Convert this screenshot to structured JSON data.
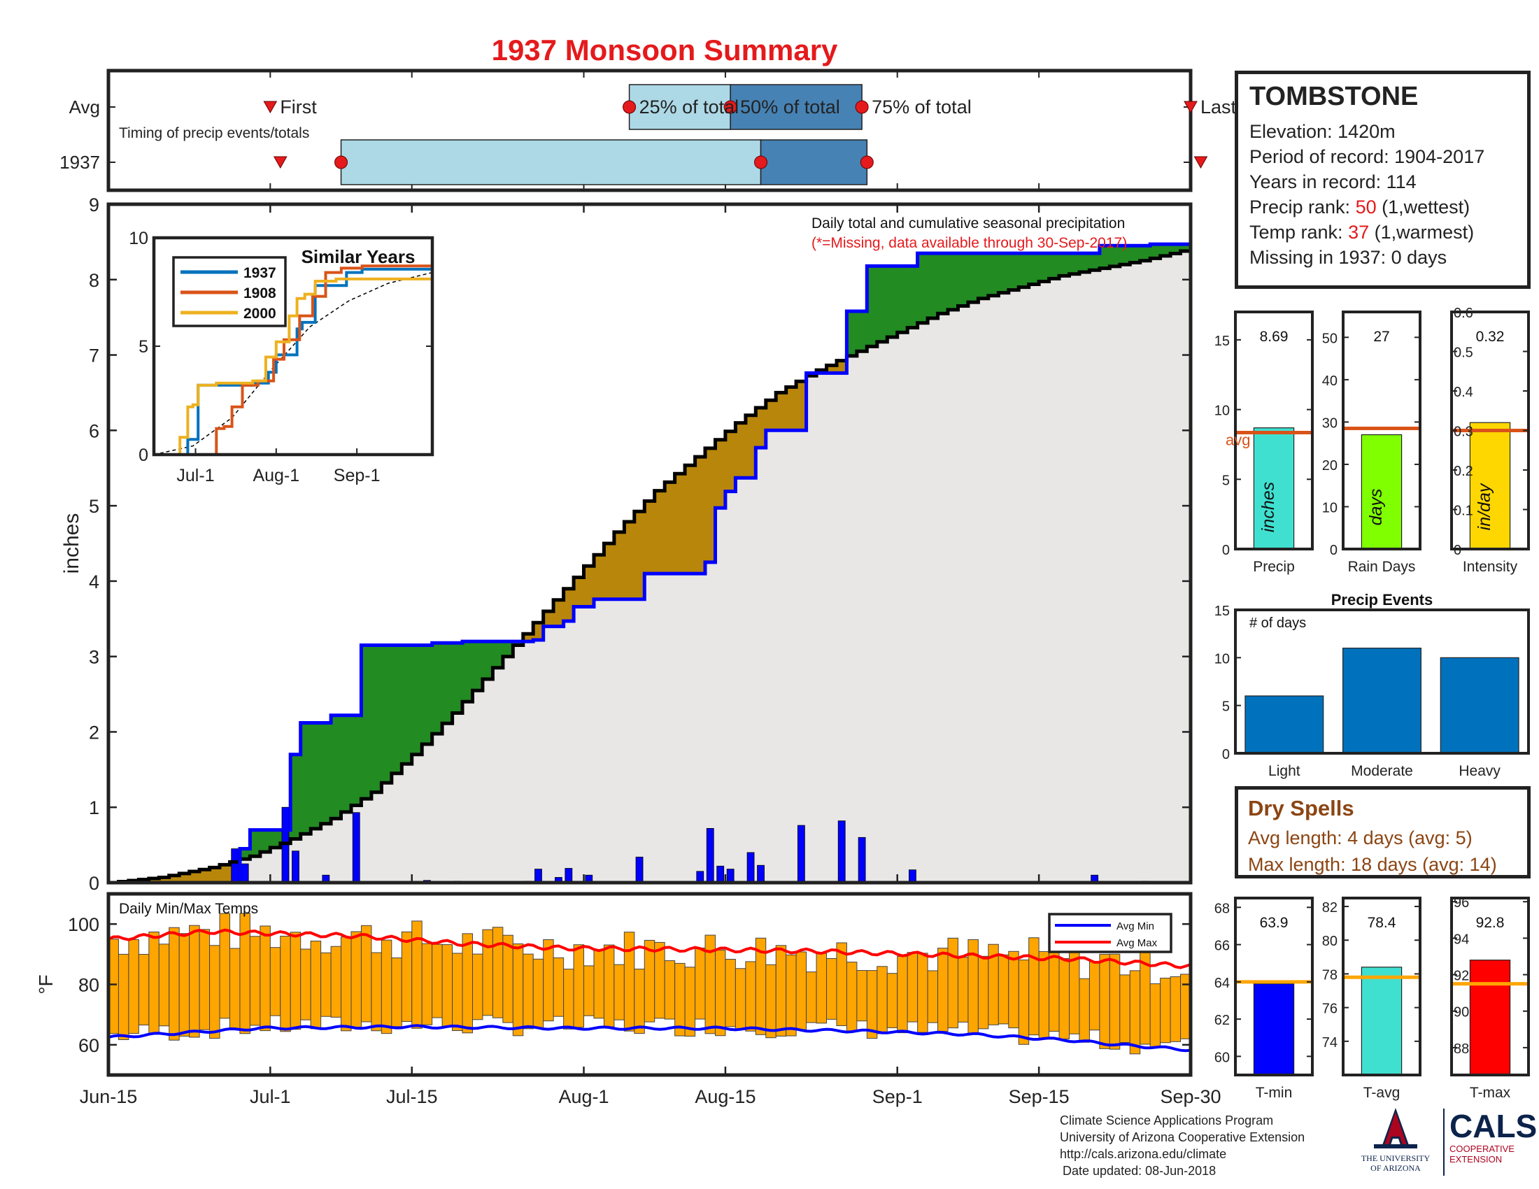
{
  "title": "1937 Monsoon Summary",
  "station": {
    "name": "TOMBSTONE",
    "elevation": "Elevation: 1420m",
    "period": "Period of record: 1904-2017",
    "years": "Years in record: 114",
    "precip_rank_prefix": "Precip rank: ",
    "precip_rank_value": "50",
    "precip_rank_suffix": " (1,wettest)",
    "temp_rank_prefix": "Temp rank: ",
    "temp_rank_value": "37",
    "temp_rank_suffix": " (1,warmest)",
    "missing": "Missing in 1937: 0 days"
  },
  "dry_spells": {
    "heading": "Dry Spells",
    "avg": "Avg length: 4 days (avg: 5)",
    "max": "Max length: 18 days (avg: 14)"
  },
  "credits": {
    "line1": "Climate Science Applications Program",
    "line2": "University of Arizona Cooperative Extension",
    "line3": "http://cals.arizona.edu/climate",
    "line4": "Date updated: 08-Jun-2018"
  },
  "logos": {
    "ua_text1": "THE UNIVERSITY",
    "ua_text2": "OF ARIZONA",
    "cals_text": "CALS",
    "cals_sub1": "COOPERATIVE",
    "cals_sub2": "EXTENSION"
  },
  "colors": {
    "red": "#e41a1c",
    "obs_line": "#0000ff",
    "avg_line": "#000000",
    "above_fill": "#228b22",
    "below_fill": "#b8860b",
    "area_fill": "#e8e7e6",
    "daily_bar": "#0000ff",
    "temp_bar": "#ffa500",
    "light_blue": "#add8e6",
    "steel_blue": "#4682b4",
    "event_bar": "#0072bd"
  },
  "chart_data": [
    {
      "id": "timing",
      "type": "timeline",
      "rows": [
        "Avg",
        "1937"
      ],
      "subtitle": "Timing of precip events/totals",
      "labels": {
        "first": "First",
        "p25": "25% of total",
        "p50": "50% of total",
        "p75": "75% of total",
        "last": "Last"
      },
      "avg": {
        "first": 16,
        "p25": 51.5,
        "p50": 61.5,
        "p75": 74.5,
        "last": 107
      },
      "y1937": {
        "first": 17,
        "p25": 23,
        "p50": 64.5,
        "p75": 75,
        "last": 108
      }
    },
    {
      "id": "cumulative",
      "type": "line",
      "title": "Daily total and cumulative seasonal precipitation",
      "note": "(*=Missing, data available through 30-Sep-2017)",
      "ylabel": "inches",
      "ylim": [
        0,
        9
      ],
      "yticks": [
        0,
        1,
        2,
        3,
        4,
        5,
        6,
        7,
        8,
        9
      ],
      "xlim": [
        0,
        107
      ],
      "xticks": [
        {
          "day": 0,
          "label": "Jun-15"
        },
        {
          "day": 16,
          "label": "Jul-1"
        },
        {
          "day": 30,
          "label": "Jul-15"
        },
        {
          "day": 47,
          "label": "Aug-1"
        },
        {
          "day": 61,
          "label": "Aug-15"
        },
        {
          "day": 78,
          "label": "Sep-1"
        },
        {
          "day": 92,
          "label": "Sep-15"
        },
        {
          "day": 107,
          "label": "Sep-30"
        }
      ],
      "avg_knots": [
        [
          0,
          0
        ],
        [
          5,
          0.07
        ],
        [
          10,
          0.2
        ],
        [
          14,
          0.35
        ],
        [
          18,
          0.58
        ],
        [
          22,
          0.85
        ],
        [
          26,
          1.2
        ],
        [
          30,
          1.7
        ],
        [
          34,
          2.25
        ],
        [
          38,
          2.85
        ],
        [
          42,
          3.45
        ],
        [
          46,
          4.05
        ],
        [
          50,
          4.65
        ],
        [
          54,
          5.2
        ],
        [
          58,
          5.65
        ],
        [
          62,
          6.1
        ],
        [
          66,
          6.5
        ],
        [
          70,
          6.8
        ],
        [
          74,
          7.05
        ],
        [
          78,
          7.3
        ],
        [
          82,
          7.55
        ],
        [
          86,
          7.75
        ],
        [
          90,
          7.9
        ],
        [
          94,
          8.05
        ],
        [
          98,
          8.15
        ],
        [
          102,
          8.25
        ],
        [
          107,
          8.41
        ]
      ],
      "daily_precip": [
        [
          12.5,
          0.45
        ],
        [
          13.5,
          0.25
        ],
        [
          17.5,
          1.0
        ],
        [
          18.5,
          0.42
        ],
        [
          21.5,
          0.1
        ],
        [
          24.5,
          0.93
        ],
        [
          31.5,
          0.03
        ],
        [
          34.5,
          0.02
        ],
        [
          41.5,
          0.02
        ],
        [
          42.5,
          0.18
        ],
        [
          44.5,
          0.07
        ],
        [
          45.5,
          0.19
        ],
        [
          47.5,
          0.1
        ],
        [
          52.5,
          0.34
        ],
        [
          58.5,
          0.15
        ],
        [
          59.5,
          0.72
        ],
        [
          60.5,
          0.22
        ],
        [
          61.5,
          0.18
        ],
        [
          63.5,
          0.4
        ],
        [
          64.5,
          0.23
        ],
        [
          68.5,
          0.76
        ],
        [
          72.5,
          0.82
        ],
        [
          74.5,
          0.6
        ],
        [
          79.5,
          0.17
        ],
        [
          97.5,
          0.1
        ],
        [
          102.5,
          0.02
        ]
      ],
      "series": [
        {
          "name": "1937"
        }
      ]
    },
    {
      "id": "similar",
      "type": "line",
      "title": "Similar Years",
      "ylim": [
        0,
        10
      ],
      "yticks": [
        0,
        5,
        10
      ],
      "xlim": [
        0,
        107
      ],
      "xticks": [
        {
          "day": 16,
          "label": "Jul-1"
        },
        {
          "day": 47,
          "label": "Aug-1"
        },
        {
          "day": 78,
          "label": "Sep-1"
        }
      ],
      "series": [
        {
          "name": "1937",
          "color": "#0072bd",
          "points": [
            [
              0,
              0
            ],
            [
              12,
              0
            ],
            [
              13,
              0.7
            ],
            [
              16,
              0.7
            ],
            [
              17,
              3.2
            ],
            [
              23,
              3.2
            ],
            [
              24,
              3.2
            ],
            [
              38,
              3.3
            ],
            [
              44,
              3.8
            ],
            [
              47,
              4.6
            ],
            [
              55,
              5.8
            ],
            [
              57,
              6.1
            ],
            [
              62,
              7.8
            ],
            [
              68,
              7.8
            ],
            [
              74,
              8.4
            ],
            [
              80,
              8.55
            ],
            [
              107,
              8.7
            ]
          ]
        },
        {
          "name": "1908",
          "color": "#d95319",
          "points": [
            [
              0,
              0
            ],
            [
              20,
              0
            ],
            [
              24,
              1.2
            ],
            [
              27,
              1.3
            ],
            [
              30,
              2.2
            ],
            [
              34,
              3.2
            ],
            [
              40,
              3.4
            ],
            [
              46,
              4.4
            ],
            [
              50,
              5.3
            ],
            [
              56,
              6.4
            ],
            [
              61,
              7.3
            ],
            [
              66,
              8.4
            ],
            [
              72,
              8.6
            ],
            [
              80,
              8.7
            ],
            [
              107,
              8.8
            ]
          ]
        },
        {
          "name": "2000",
          "color": "#edb120",
          "points": [
            [
              0,
              0
            ],
            [
              8,
              0
            ],
            [
              10,
              0.8
            ],
            [
              13,
              2.2
            ],
            [
              15,
              2.3
            ],
            [
              17,
              3.2
            ],
            [
              24,
              3.3
            ],
            [
              38,
              3.4
            ],
            [
              43,
              4.5
            ],
            [
              47,
              5.2
            ],
            [
              52,
              6.4
            ],
            [
              55,
              7.2
            ],
            [
              58,
              7.4
            ],
            [
              62,
              8.0
            ],
            [
              70,
              8.1
            ],
            [
              80,
              8.1
            ],
            [
              107,
              8.1
            ]
          ]
        }
      ],
      "avg_series": {
        "style": "dashed",
        "points": [
          [
            0,
            0
          ],
          [
            15,
            0.4
          ],
          [
            30,
            1.7
          ],
          [
            45,
            3.9
          ],
          [
            60,
            5.9
          ],
          [
            75,
            7.1
          ],
          [
            90,
            7.9
          ],
          [
            107,
            8.4
          ]
        ]
      }
    },
    {
      "id": "temps",
      "type": "bar",
      "title": "Daily Min/Max Temps",
      "ylabel": "°F",
      "ylim": [
        50,
        110
      ],
      "yticks": [
        60,
        80,
        100
      ],
      "legend": [
        {
          "name": "Avg Min",
          "color": "#0000ff"
        },
        {
          "name": "Avg Max",
          "color": "#ff0000"
        }
      ],
      "legend_position": "top-right",
      "avg_min": [
        [
          0,
          62.5
        ],
        [
          15,
          65.5
        ],
        [
          30,
          66
        ],
        [
          45,
          65.5
        ],
        [
          60,
          65.5
        ],
        [
          75,
          64.5
        ],
        [
          85,
          63.5
        ],
        [
          95,
          61.5
        ],
        [
          100,
          60
        ],
        [
          107,
          58.3
        ]
      ],
      "avg_max": [
        [
          0,
          95
        ],
        [
          10,
          97.5
        ],
        [
          25,
          96
        ],
        [
          35,
          93.5
        ],
        [
          45,
          92
        ],
        [
          60,
          91.5
        ],
        [
          70,
          91
        ],
        [
          80,
          90
        ],
        [
          95,
          88.5
        ],
        [
          107,
          86
        ]
      ]
    },
    {
      "id": "precip_summary",
      "type": "bar",
      "title": "",
      "xlabel": "Precip",
      "value": 8.69,
      "value_label": "8.69",
      "average": 8.35,
      "avg_label": "avg",
      "bar_label": "inches",
      "ylim": [
        0,
        17
      ],
      "yticks": [
        0,
        5,
        10,
        15
      ],
      "color": "#40e0d0"
    },
    {
      "id": "raindays_summary",
      "type": "bar",
      "xlabel": "Rain Days",
      "value": 27,
      "value_label": "27",
      "average": 28.5,
      "bar_label": "days",
      "ylim": [
        0,
        56
      ],
      "yticks": [
        0,
        10,
        20,
        30,
        40,
        50
      ],
      "color": "#7fff00"
    },
    {
      "id": "intensity_summary",
      "type": "bar",
      "xlabel": "Intensity",
      "value": 0.32,
      "value_label": "0.32",
      "average": 0.3,
      "bar_label": "in/day",
      "ylim": [
        0,
        0.6
      ],
      "yticks": [
        0,
        0.1,
        0.2,
        0.3,
        0.4,
        0.5,
        0.6
      ],
      "color": "#ffd700"
    },
    {
      "id": "precip_events",
      "type": "bar",
      "title": "Precip Events",
      "ylabel_inside": "# of days",
      "categories": [
        "Light",
        "Moderate",
        "Heavy"
      ],
      "values": [
        6,
        11,
        10
      ],
      "ylim": [
        0,
        15
      ],
      "yticks": [
        0,
        5,
        10,
        15
      ]
    },
    {
      "id": "tmin_summary",
      "type": "bar",
      "xlabel": "T-min",
      "value": 63.9,
      "value_label": "63.9",
      "average": 64.0,
      "ylim": [
        59,
        68.5
      ],
      "yticks": [
        60,
        62,
        64,
        66,
        68
      ],
      "color": "#0000ff"
    },
    {
      "id": "tavg_summary",
      "type": "bar",
      "xlabel": "T-avg",
      "value": 78.4,
      "value_label": "78.4",
      "average": 77.8,
      "ylim": [
        72,
        82.5
      ],
      "yticks": [
        74,
        76,
        78,
        80,
        82
      ],
      "color": "#40e0d0"
    },
    {
      "id": "tmax_summary",
      "type": "bar",
      "xlabel": "T-max",
      "value": 92.8,
      "value_label": "92.8",
      "average": 91.5,
      "ylim": [
        86.5,
        96.2
      ],
      "yticks": [
        88,
        90,
        92,
        94,
        96
      ],
      "color": "#ff0000"
    }
  ]
}
